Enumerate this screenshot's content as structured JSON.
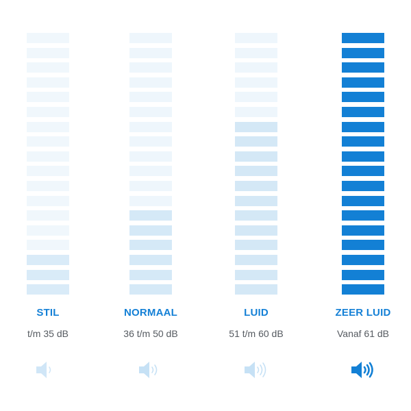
{
  "accent_color": "#1380d5",
  "label_color": "#1480d6",
  "range_color": "#555a60",
  "segment_count": 18,
  "levels": [
    {
      "name": "STIL",
      "range": "t/m 35 dB",
      "active_segments": 3,
      "inactive_color": "#f0f7fc",
      "active_color": "#d9ebf8",
      "icon": "speaker-one-wave-icon",
      "icon_color": "#d0e6f7"
    },
    {
      "name": "NORMAAL",
      "range": "36 t/m 50 dB",
      "active_segments": 6,
      "inactive_color": "#eef6fc",
      "active_color": "#d5e9f7",
      "icon": "speaker-two-waves-icon",
      "icon_color": "#c6e1f5"
    },
    {
      "name": "LUID",
      "range": "51 t/m 60 dB",
      "active_segments": 12,
      "inactive_color": "#eef6fc",
      "active_color": "#d4e8f6",
      "icon": "speaker-three-waves-icon",
      "icon_color": "#c6e1f5"
    },
    {
      "name": "ZEER LUID",
      "range": "Vanaf 61 dB",
      "active_segments": 18,
      "inactive_color": "#1380d5",
      "active_color": "#1380d5",
      "icon": "speaker-three-waves-icon",
      "icon_color": "#1380d5"
    }
  ]
}
